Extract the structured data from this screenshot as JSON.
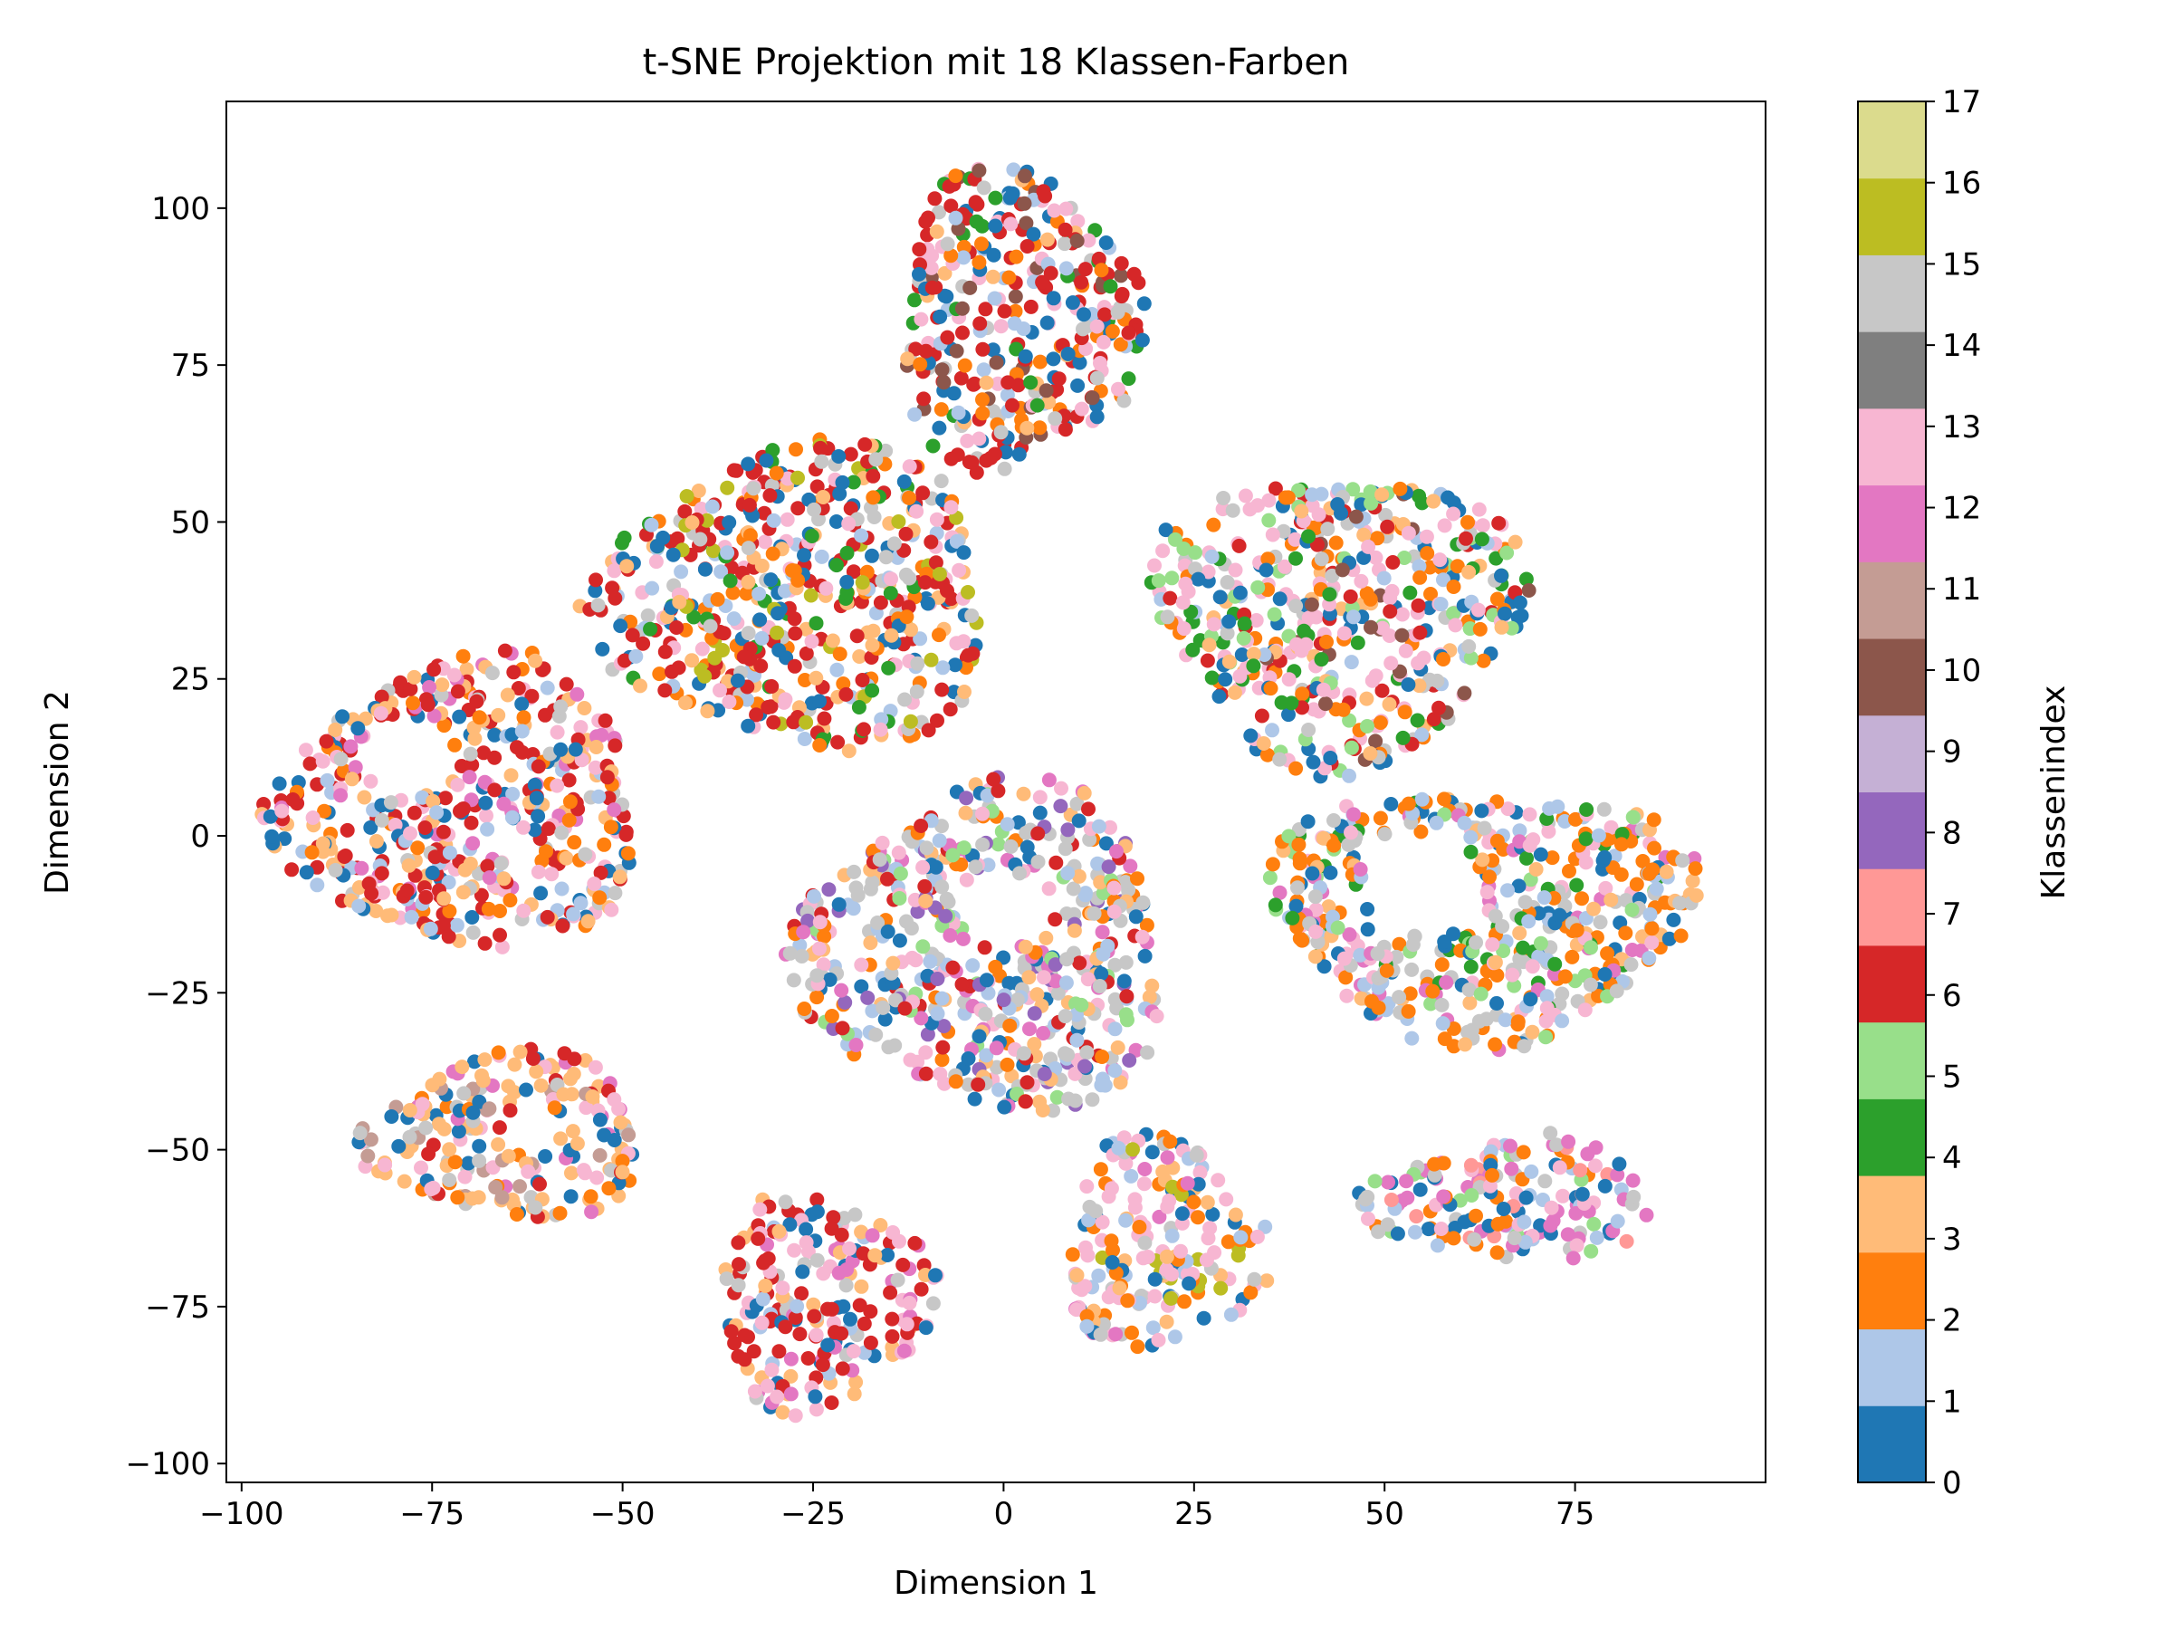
{
  "chart_data": {
    "type": "scatter",
    "title": "t-SNE Projektion mit 18 Klassen-Farben",
    "xlabel": "Dimension 1",
    "ylabel": "Dimension 2",
    "xlim": [
      -102,
      100
    ],
    "ylim": [
      -103,
      117
    ],
    "xticks": [
      -100,
      -75,
      -50,
      -25,
      0,
      25,
      50,
      75
    ],
    "xtick_labels": [
      "−100",
      "−75",
      "−50",
      "−25",
      "0",
      "25",
      "50",
      "75"
    ],
    "yticks": [
      -100,
      -75,
      -50,
      -25,
      0,
      25,
      50,
      75,
      100
    ],
    "ytick_labels": [
      "−100",
      "−75",
      "−50",
      "−25",
      "0",
      "25",
      "50",
      "75",
      "100"
    ],
    "grid": false,
    "legend": "none",
    "colorbar": {
      "label": "Klassenindex",
      "min": 0,
      "max": 17,
      "ticks": [
        0,
        1,
        2,
        3,
        4,
        5,
        6,
        7,
        8,
        9,
        10,
        11,
        12,
        13,
        14,
        15,
        16,
        17
      ],
      "colors": [
        "#1f77b4",
        "#aec7e8",
        "#ff7f0e",
        "#ffbb78",
        "#2ca02c",
        "#98df8a",
        "#d62728",
        "#ff9896",
        "#9467bd",
        "#c5b0d5",
        "#8c564b",
        "#c49c94",
        "#e377c2",
        "#f7b6d2",
        "#7f7f7f",
        "#c7c7c7",
        "#bcbd22",
        "#dbdb8d"
      ]
    },
    "clusters": [
      {
        "name": "top",
        "center": [
          2,
          82
        ],
        "radius": [
          16,
          24
        ],
        "hole": null,
        "classes": [
          6,
          0,
          13,
          2,
          15,
          3,
          1,
          4,
          10
        ]
      },
      {
        "name": "upper-left",
        "center": [
          -27,
          38
        ],
        "radius": [
          26,
          24
        ],
        "hole": null,
        "classes": [
          6,
          0,
          13,
          3,
          15,
          2,
          1,
          16,
          4
        ]
      },
      {
        "name": "upper-right",
        "center": [
          44,
          35
        ],
        "radius": [
          24,
          23
        ],
        "hole": null,
        "classes": [
          13,
          2,
          0,
          6,
          15,
          3,
          1,
          4,
          5,
          10
        ]
      },
      {
        "name": "left",
        "center": [
          -71,
          5
        ],
        "radius": [
          24,
          23
        ],
        "hole": [
          -78,
          13,
          6
        ],
        "classes": [
          6,
          3,
          13,
          0,
          15,
          2,
          1,
          12
        ]
      },
      {
        "name": "center",
        "center": [
          -2,
          -18
        ],
        "radius": [
          24,
          26
        ],
        "hole": [
          0,
          -12,
          6
        ],
        "classes": [
          15,
          13,
          1,
          6,
          0,
          2,
          3,
          12,
          5,
          8
        ]
      },
      {
        "name": "right",
        "center": [
          63,
          -12
        ],
        "radius": [
          28,
          20
        ],
        "hole": [
          55,
          -8,
          8
        ],
        "classes": [
          2,
          15,
          1,
          0,
          13,
          12,
          4,
          3,
          5
        ]
      },
      {
        "name": "lower-left",
        "center": [
          -65,
          -48
        ],
        "radius": [
          18,
          13
        ],
        "hole": [
          -62,
          -47,
          4
        ],
        "classes": [
          3,
          0,
          13,
          2,
          15,
          11,
          12,
          6
        ]
      },
      {
        "name": "bottom-center",
        "center": [
          -24,
          -74
        ],
        "radius": [
          14,
          17
        ],
        "hole": null,
        "classes": [
          6,
          13,
          0,
          3,
          15,
          12,
          1
        ]
      },
      {
        "name": "lower-mid",
        "center": [
          21,
          -65
        ],
        "radius": [
          13,
          17
        ],
        "hole": null,
        "classes": [
          13,
          2,
          0,
          15,
          1,
          12,
          16,
          3
        ]
      },
      {
        "name": "lower-right",
        "center": [
          67,
          -58
        ],
        "radius": [
          19,
          10
        ],
        "hole": null,
        "classes": [
          12,
          1,
          0,
          2,
          13,
          15,
          7,
          5
        ]
      }
    ]
  }
}
